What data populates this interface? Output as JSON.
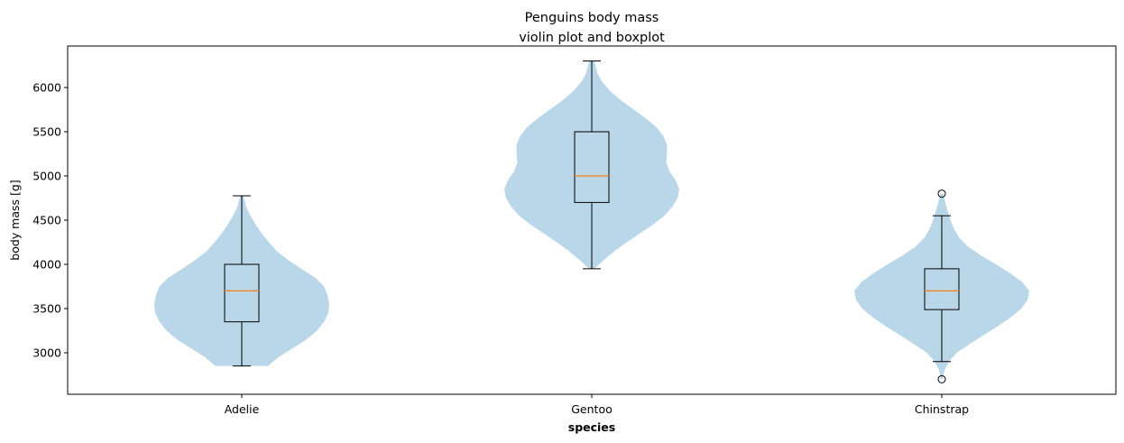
{
  "chart_data": {
    "type": "violin+box",
    "title_lines": [
      "Penguins body mass",
      "violin plot and boxplot"
    ],
    "xlabel": "species",
    "ylabel": "body mass [g]",
    "ylim": [
      2530,
      6470
    ],
    "yticks": [
      3000,
      3500,
      4000,
      4500,
      5000,
      5500,
      6000
    ],
    "categories": [
      "Adelie",
      "Gentoo",
      "Chinstrap"
    ],
    "colors": {
      "violin": "#bad6e9",
      "median": "#ff7f0e",
      "box": "#000000",
      "axis": "#000000"
    },
    "boxes": [
      {
        "category": "Adelie",
        "whisker_low": 2850,
        "q1": 3350,
        "median": 3700,
        "q3": 4000,
        "whisker_high": 4775,
        "outliers": []
      },
      {
        "category": "Gentoo",
        "whisker_low": 3950,
        "q1": 4700,
        "median": 5000,
        "q3": 5500,
        "whisker_high": 6300,
        "outliers": []
      },
      {
        "category": "Chinstrap",
        "whisker_low": 2900,
        "q1": 3488,
        "median": 3700,
        "q3": 3950,
        "whisker_high": 4550,
        "outliers": [
          2700,
          4800
        ]
      }
    ],
    "violins": [
      {
        "category": "Adelie",
        "min": 2850,
        "max": 4775,
        "density_profile": [
          [
            2850,
            0.3
          ],
          [
            2950,
            0.42
          ],
          [
            3050,
            0.58
          ],
          [
            3150,
            0.74
          ],
          [
            3250,
            0.86
          ],
          [
            3350,
            0.94
          ],
          [
            3450,
            0.99
          ],
          [
            3550,
            1.0
          ],
          [
            3650,
            0.98
          ],
          [
            3750,
            0.94
          ],
          [
            3850,
            0.84
          ],
          [
            3950,
            0.68
          ],
          [
            4050,
            0.53
          ],
          [
            4150,
            0.4
          ],
          [
            4250,
            0.31
          ],
          [
            4350,
            0.23
          ],
          [
            4450,
            0.16
          ],
          [
            4550,
            0.1
          ],
          [
            4650,
            0.05
          ],
          [
            4775,
            0.02
          ]
        ]
      },
      {
        "category": "Gentoo",
        "min": 3950,
        "max": 6300,
        "density_profile": [
          [
            3950,
            0.03
          ],
          [
            4050,
            0.14
          ],
          [
            4150,
            0.26
          ],
          [
            4250,
            0.4
          ],
          [
            4350,
            0.55
          ],
          [
            4450,
            0.7
          ],
          [
            4550,
            0.83
          ],
          [
            4650,
            0.92
          ],
          [
            4750,
            0.98
          ],
          [
            4850,
            1.0
          ],
          [
            4950,
            0.96
          ],
          [
            5050,
            0.89
          ],
          [
            5150,
            0.85
          ],
          [
            5250,
            0.86
          ],
          [
            5350,
            0.86
          ],
          [
            5450,
            0.82
          ],
          [
            5550,
            0.74
          ],
          [
            5650,
            0.62
          ],
          [
            5750,
            0.48
          ],
          [
            5850,
            0.34
          ],
          [
            5950,
            0.22
          ],
          [
            6050,
            0.13
          ],
          [
            6150,
            0.07
          ],
          [
            6250,
            0.04
          ],
          [
            6300,
            0.03
          ]
        ]
      },
      {
        "category": "Chinstrap",
        "min": 2700,
        "max": 4800,
        "density_profile": [
          [
            2700,
            0.01
          ],
          [
            2800,
            0.03
          ],
          [
            2900,
            0.08
          ],
          [
            3000,
            0.17
          ],
          [
            3100,
            0.32
          ],
          [
            3200,
            0.48
          ],
          [
            3300,
            0.64
          ],
          [
            3400,
            0.79
          ],
          [
            3500,
            0.91
          ],
          [
            3600,
            0.98
          ],
          [
            3700,
            1.0
          ],
          [
            3800,
            0.92
          ],
          [
            3900,
            0.78
          ],
          [
            4000,
            0.62
          ],
          [
            4100,
            0.45
          ],
          [
            4200,
            0.3
          ],
          [
            4300,
            0.2
          ],
          [
            4400,
            0.14
          ],
          [
            4500,
            0.1
          ],
          [
            4600,
            0.07
          ],
          [
            4700,
            0.04
          ],
          [
            4800,
            0.02
          ]
        ]
      }
    ]
  }
}
